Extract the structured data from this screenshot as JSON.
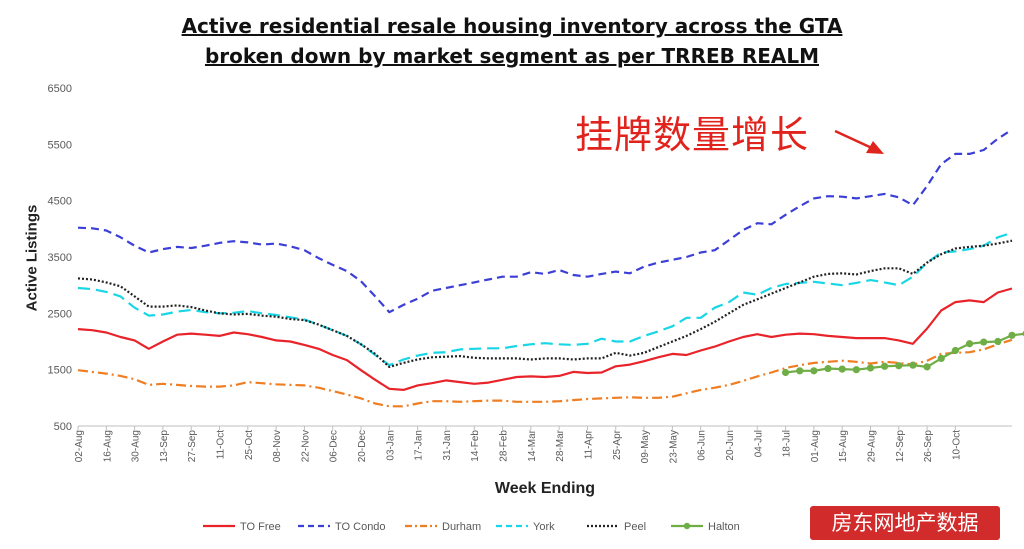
{
  "chart_data": {
    "type": "line",
    "title": "Active residential resale housing inventory across the GTA",
    "subtitle": "broken down by market segment as per TRREB REALM",
    "xlabel": "Week Ending",
    "ylabel": "Active Listings",
    "ylim": [
      500,
      6500
    ],
    "yticks": [
      500,
      1500,
      2500,
      3500,
      4500,
      5500,
      6500
    ],
    "xtick_labels": [
      "02-Aug",
      "16-Aug",
      "30-Aug",
      "13-Sep",
      "27-Sep",
      "11-Oct",
      "25-Oct",
      "08-Nov",
      "22-Nov",
      "06-Dec",
      "20-Dec",
      "03-Jan",
      "17-Jan",
      "31-Jan",
      "14-Feb",
      "28-Feb",
      "14-Mar",
      "28-Mar",
      "11-Apr",
      "25-Apr",
      "09-May",
      "23-May",
      "06-Jun",
      "20-Jun",
      "04-Jul",
      "18-Jul",
      "01-Aug",
      "15-Aug",
      "29-Aug",
      "12-Sep",
      "26-Sep",
      "10-Oct"
    ],
    "grid": false,
    "legend_position": "bottom",
    "annotation": "挂牌数量增长",
    "series": [
      {
        "name": "TO Free",
        "color": "#e8232a",
        "dash": "solid",
        "marker": false,
        "values": [
          2220,
          2200,
          2160,
          2080,
          2020,
          1870,
          2000,
          2120,
          2140,
          2120,
          2100,
          2160,
          2130,
          2080,
          2020,
          2000,
          1940,
          1870,
          1760,
          1670,
          1490,
          1320,
          1160,
          1140,
          1220,
          1260,
          1310,
          1280,
          1250,
          1270,
          1320,
          1370,
          1380,
          1370,
          1390,
          1460,
          1440,
          1450,
          1560,
          1590,
          1650,
          1720,
          1780,
          1760,
          1840,
          1910,
          2000,
          2080,
          2130,
          2080,
          2120,
          2140,
          2130,
          2100,
          2080,
          2060,
          2060,
          2060,
          2020,
          1960,
          2230,
          2550,
          2700,
          2730,
          2700,
          2870,
          2940
        ]
      },
      {
        "name": "TO Condo",
        "color": "#3c3fd6",
        "dash": "dashed",
        "marker": false,
        "values": [
          4020,
          4010,
          3970,
          3850,
          3700,
          3580,
          3640,
          3680,
          3660,
          3700,
          3750,
          3780,
          3760,
          3720,
          3740,
          3690,
          3620,
          3480,
          3360,
          3250,
          3070,
          2800,
          2520,
          2650,
          2760,
          2900,
          2950,
          3000,
          3050,
          3100,
          3150,
          3150,
          3230,
          3200,
          3270,
          3180,
          3150,
          3200,
          3240,
          3210,
          3330,
          3400,
          3450,
          3500,
          3580,
          3620,
          3800,
          3980,
          4100,
          4080,
          4250,
          4400,
          4540,
          4580,
          4570,
          4540,
          4580,
          4620,
          4560,
          4420,
          4760,
          5150,
          5330,
          5330,
          5400,
          5600,
          5760
        ]
      },
      {
        "name": "Durham",
        "color": "#ef7d22",
        "dash": "dashdot",
        "marker": false,
        "values": [
          1490,
          1460,
          1430,
          1390,
          1330,
          1230,
          1250,
          1230,
          1210,
          1200,
          1200,
          1220,
          1280,
          1260,
          1240,
          1230,
          1220,
          1180,
          1120,
          1060,
          990,
          900,
          850,
          850,
          900,
          940,
          940,
          930,
          940,
          950,
          950,
          930,
          930,
          930,
          940,
          960,
          980,
          990,
          1000,
          1010,
          1000,
          1000,
          1020,
          1080,
          1140,
          1180,
          1230,
          1300,
          1380,
          1450,
          1530,
          1580,
          1620,
          1640,
          1660,
          1640,
          1610,
          1640,
          1620,
          1590,
          1660,
          1780,
          1800,
          1810,
          1860,
          1950,
          2030
        ]
      },
      {
        "name": "York",
        "color": "#18d6e6",
        "dash": "longdash",
        "marker": false,
        "values": [
          2950,
          2930,
          2880,
          2800,
          2600,
          2460,
          2480,
          2530,
          2560,
          2520,
          2500,
          2510,
          2540,
          2500,
          2470,
          2430,
          2390,
          2300,
          2200,
          2100,
          1950,
          1760,
          1580,
          1680,
          1750,
          1800,
          1810,
          1860,
          1870,
          1880,
          1880,
          1920,
          1950,
          1970,
          1950,
          1940,
          1960,
          2050,
          2000,
          2000,
          2100,
          2180,
          2270,
          2420,
          2420,
          2600,
          2700,
          2870,
          2830,
          2950,
          3020,
          3040,
          3060,
          3030,
          3000,
          3040,
          3090,
          3050,
          3000,
          3150,
          3400,
          3580,
          3600,
          3640,
          3700,
          3850,
          3930
        ]
      },
      {
        "name": "Peel",
        "color": "#222222",
        "dash": "dotted",
        "marker": false,
        "values": [
          3120,
          3100,
          3050,
          2980,
          2800,
          2620,
          2620,
          2640,
          2610,
          2550,
          2500,
          2480,
          2490,
          2460,
          2440,
          2400,
          2380,
          2300,
          2200,
          2100,
          1950,
          1780,
          1550,
          1620,
          1680,
          1720,
          1730,
          1740,
          1710,
          1700,
          1700,
          1700,
          1680,
          1700,
          1700,
          1680,
          1700,
          1700,
          1800,
          1750,
          1800,
          1900,
          2000,
          2100,
          2220,
          2350,
          2500,
          2650,
          2750,
          2850,
          2950,
          3050,
          3150,
          3200,
          3210,
          3190,
          3250,
          3300,
          3300,
          3200,
          3400,
          3550,
          3650,
          3680,
          3700,
          3740,
          3790
        ]
      },
      {
        "name": "Halton",
        "color": "#6fad46",
        "dash": "solid",
        "marker": true,
        "start_index": 50,
        "values": [
          1450,
          1480,
          1480,
          1520,
          1510,
          1500,
          1530,
          1560,
          1570,
          1580,
          1550,
          1700,
          1840,
          1960,
          1990,
          2000,
          2110,
          2140
        ]
      }
    ]
  }
}
